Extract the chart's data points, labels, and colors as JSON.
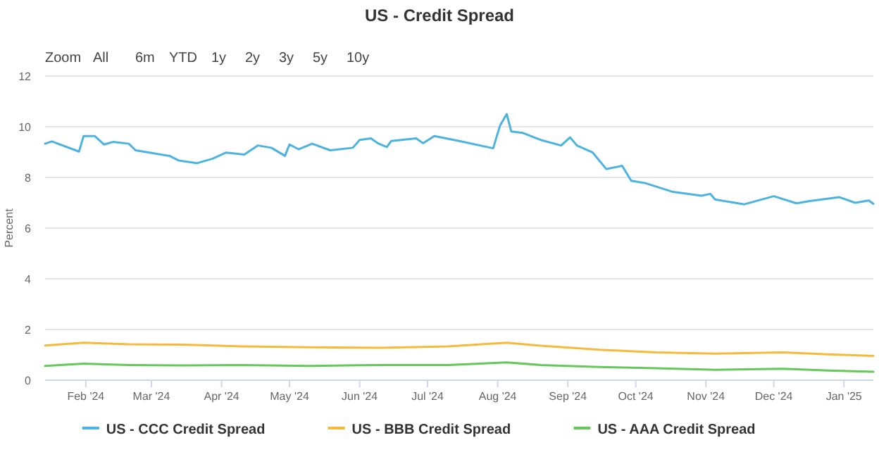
{
  "chart_data": {
    "type": "line",
    "title": "US - Credit Spread",
    "ylabel": "Percent",
    "annotations": [
      "Zoom",
      "All",
      "6m",
      "YTD",
      "1y",
      "2y",
      "3y",
      "5y",
      "10y"
    ],
    "xlim": [
      "2024-01-14",
      "2025-01-14"
    ],
    "ylim": [
      0,
      12
    ],
    "yticks": [
      0,
      2,
      4,
      6,
      8,
      10,
      12
    ],
    "xticks": [
      {
        "value": "2024-02-01",
        "label": "Feb '24"
      },
      {
        "value": "2024-03-01",
        "label": "Mar '24"
      },
      {
        "value": "2024-04-01",
        "label": "Apr '24"
      },
      {
        "value": "2024-05-01",
        "label": "May '24"
      },
      {
        "value": "2024-06-01",
        "label": "Jun '24"
      },
      {
        "value": "2024-07-01",
        "label": "Jul '24"
      },
      {
        "value": "2024-08-01",
        "label": "Aug '24"
      },
      {
        "value": "2024-09-01",
        "label": "Sep '24"
      },
      {
        "value": "2024-10-01",
        "label": "Oct '24"
      },
      {
        "value": "2024-11-01",
        "label": "Nov '24"
      },
      {
        "value": "2024-12-01",
        "label": "Dec '24"
      },
      {
        "value": "2025-01-01",
        "label": "Jan '25"
      }
    ],
    "grid": "y",
    "legend": "bottom",
    "marker": "none",
    "line_style": "solid",
    "series": [
      {
        "name": "US - CCC Credit Spread",
        "color": "#4cb3e0",
        "x": [
          "2024-01-14",
          "2024-01-17",
          "2024-01-29",
          "2024-01-31",
          "2024-02-05",
          "2024-02-09",
          "2024-02-13",
          "2024-02-20",
          "2024-02-23",
          "2024-03-09",
          "2024-03-13",
          "2024-03-21",
          "2024-03-28",
          "2024-04-03",
          "2024-04-11",
          "2024-04-17",
          "2024-04-23",
          "2024-04-29",
          "2024-05-01",
          "2024-05-05",
          "2024-05-11",
          "2024-05-19",
          "2024-05-29",
          "2024-06-01",
          "2024-06-06",
          "2024-06-09",
          "2024-06-13",
          "2024-06-15",
          "2024-06-26",
          "2024-06-29",
          "2024-07-04",
          "2024-07-15",
          "2024-07-30",
          "2024-08-02",
          "2024-08-05",
          "2024-08-07",
          "2024-08-12",
          "2024-08-20",
          "2024-08-29",
          "2024-09-02",
          "2024-09-05",
          "2024-09-12",
          "2024-09-18",
          "2024-09-25",
          "2024-09-29",
          "2024-10-05",
          "2024-10-17",
          "2024-10-30",
          "2024-11-03",
          "2024-11-05",
          "2024-11-18",
          "2024-12-01",
          "2024-12-11",
          "2024-12-17",
          "2024-12-30",
          "2025-01-06",
          "2025-01-12",
          "2025-01-14"
        ],
        "values": [
          9.33,
          9.42,
          9.02,
          9.63,
          9.63,
          9.3,
          9.4,
          9.33,
          9.07,
          8.85,
          8.67,
          8.56,
          8.74,
          8.98,
          8.9,
          9.26,
          9.17,
          8.85,
          9.3,
          9.11,
          9.33,
          9.07,
          9.17,
          9.48,
          9.54,
          9.35,
          9.2,
          9.44,
          9.54,
          9.35,
          9.63,
          9.44,
          9.15,
          10.04,
          10.5,
          9.81,
          9.76,
          9.48,
          9.26,
          9.58,
          9.26,
          8.98,
          8.33,
          8.46,
          7.87,
          7.78,
          7.44,
          7.28,
          7.35,
          7.13,
          6.94,
          7.26,
          6.98,
          7.07,
          7.22,
          7.0,
          7.09,
          6.96
        ]
      },
      {
        "name": "US - BBB Credit Spread",
        "color": "#f7b93c",
        "x": [
          "2024-01-14",
          "2024-01-31",
          "2024-02-20",
          "2024-03-15",
          "2024-04-10",
          "2024-05-10",
          "2024-06-10",
          "2024-07-10",
          "2024-08-05",
          "2024-08-20",
          "2024-09-15",
          "2024-10-10",
          "2024-11-05",
          "2024-12-05",
          "2024-12-25",
          "2025-01-14"
        ],
        "values": [
          1.37,
          1.48,
          1.42,
          1.4,
          1.33,
          1.3,
          1.28,
          1.33,
          1.48,
          1.36,
          1.2,
          1.1,
          1.05,
          1.1,
          1.02,
          0.96
        ]
      },
      {
        "name": "US - AAA Credit Spread",
        "color": "#66c75a",
        "x": [
          "2024-01-14",
          "2024-01-31",
          "2024-02-20",
          "2024-03-15",
          "2024-04-10",
          "2024-05-10",
          "2024-06-10",
          "2024-07-10",
          "2024-08-05",
          "2024-08-20",
          "2024-09-15",
          "2024-10-10",
          "2024-11-05",
          "2024-12-05",
          "2024-12-25",
          "2025-01-14"
        ],
        "values": [
          0.56,
          0.65,
          0.6,
          0.58,
          0.6,
          0.56,
          0.6,
          0.6,
          0.7,
          0.6,
          0.52,
          0.47,
          0.41,
          0.45,
          0.38,
          0.33
        ]
      }
    ]
  }
}
